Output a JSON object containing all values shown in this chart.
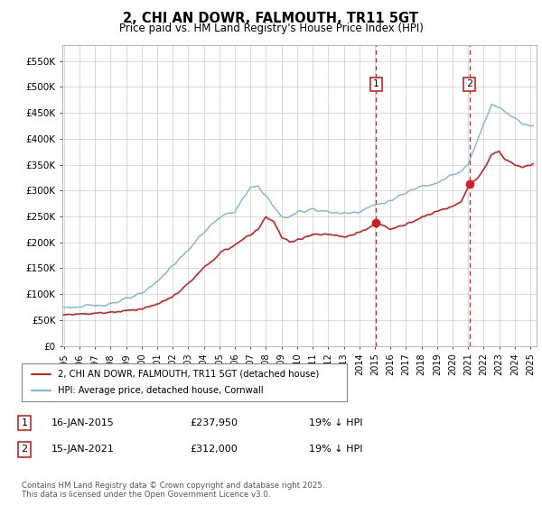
{
  "title": "2, CHI AN DOWR, FALMOUTH, TR11 5GT",
  "subtitle": "Price paid vs. HM Land Registry's House Price Index (HPI)",
  "background_color": "#ffffff",
  "plot_bg_color": "#ffffff",
  "grid_color": "#cccccc",
  "ylim": [
    0,
    580000
  ],
  "yticks": [
    0,
    50000,
    100000,
    150000,
    200000,
    250000,
    300000,
    350000,
    400000,
    450000,
    500000,
    550000
  ],
  "ytick_labels": [
    "£0",
    "£50K",
    "£100K",
    "£150K",
    "£200K",
    "£250K",
    "£300K",
    "£350K",
    "£400K",
    "£450K",
    "£500K",
    "£550K"
  ],
  "hpi_color": "#7ab5d8",
  "price_color": "#cc2222",
  "vline_color": "#cc2222",
  "legend_line1": "2, CHI AN DOWR, FALMOUTH, TR11 5GT (detached house)",
  "legend_line2": "HPI: Average price, detached house, Cornwall",
  "footer": "Contains HM Land Registry data © Crown copyright and database right 2025.\nThis data is licensed under the Open Government Licence v3.0."
}
